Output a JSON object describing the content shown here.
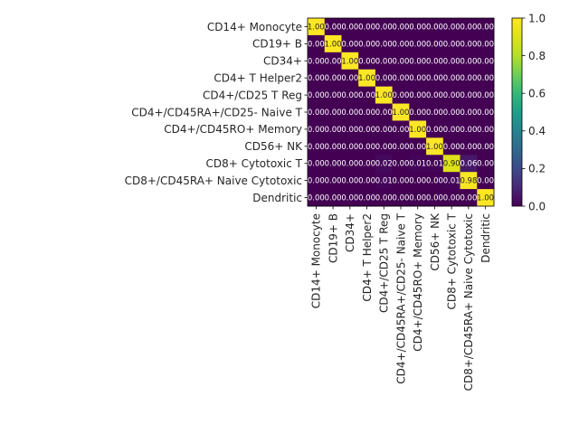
{
  "chart_data": {
    "type": "heatmap",
    "title": "",
    "xlabel": "",
    "ylabel": "",
    "categories": [
      "CD14+ Monocyte",
      "CD19+ B",
      "CD34+",
      "CD4+ T Helper2",
      "CD4+/CD25 T Reg",
      "CD4+/CD45RA+/CD25- Naive T",
      "CD4+/CD45RO+ Memory",
      "CD56+ NK",
      "CD8+ Cytotoxic T",
      "CD8+/CD45RA+ Naive Cytotoxic",
      "Dendritic"
    ],
    "value_labels": [
      [
        "1.00",
        "0.00",
        "0.00",
        "0.00",
        "0.00",
        "0.00",
        "0.00",
        "0.00",
        "0.00",
        "0.00",
        "0.00"
      ],
      [
        "0.00",
        "1.00",
        "0.00",
        "0.00",
        "0.00",
        "0.00",
        "0.00",
        "0.00",
        "0.00",
        "0.00",
        "0.00"
      ],
      [
        "0.00",
        "0.00",
        "1.00",
        "0.00",
        "0.00",
        "0.00",
        "0.00",
        "0.00",
        "0.00",
        "0.00",
        "0.00"
      ],
      [
        "0.00",
        "0.00",
        "0.00",
        "1.00",
        "0.00",
        "0.00",
        "0.00",
        "0.00",
        "0.00",
        "0.00",
        "0.00"
      ],
      [
        "0.00",
        "0.00",
        "0.00",
        "0.00",
        "1.00",
        "0.00",
        "0.00",
        "0.00",
        "0.00",
        "0.00",
        "0.00"
      ],
      [
        "0.00",
        "0.00",
        "0.00",
        "0.00",
        "0.00",
        "1.00",
        "0.00",
        "0.00",
        "0.00",
        "0.00",
        "0.00"
      ],
      [
        "0.00",
        "0.00",
        "0.00",
        "0.00",
        "0.00",
        "0.00",
        "1.00",
        "0.00",
        "0.00",
        "0.00",
        "0.00"
      ],
      [
        "0.00",
        "0.00",
        "0.00",
        "0.00",
        "0.00",
        "0.00",
        "0.00",
        "1.00",
        "0.00",
        "0.00",
        "0.00"
      ],
      [
        "0.00",
        "0.00",
        "0.00",
        "0.00",
        "0.02",
        "0.00",
        "0.01",
        "0.01",
        "0.90",
        "0.06",
        "0.00"
      ],
      [
        "0.00",
        "0.00",
        "0.00",
        "0.00",
        "0.01",
        "0.00",
        "0.00",
        "0.00",
        "0.01",
        "0.98",
        "0.00"
      ],
      [
        "0.00",
        "0.00",
        "0.00",
        "0.00",
        "0.00",
        "0.00",
        "0.00",
        "0.00",
        "0.00",
        "0.00",
        "1.00"
      ]
    ],
    "colorbar": {
      "colormap": "viridis",
      "range": [
        0.0,
        1.0
      ],
      "ticks": [
        "0.0",
        "0.2",
        "0.4",
        "0.6",
        "0.8",
        "1.0"
      ]
    },
    "grid": false,
    "legend": "colorbar-right"
  }
}
